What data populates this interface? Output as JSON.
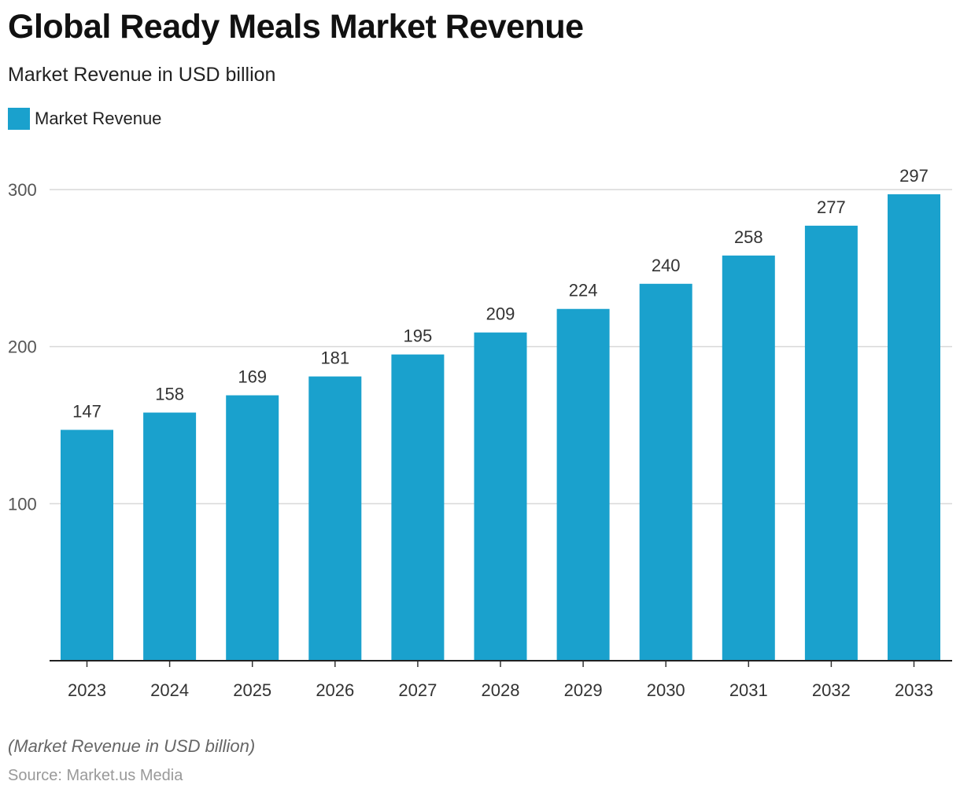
{
  "chart_data": {
    "type": "bar",
    "title": "Global Ready Meals Market Revenue",
    "subtitle": "Market Revenue in USD billion",
    "categories": [
      "2023",
      "2024",
      "2025",
      "2026",
      "2027",
      "2028",
      "2029",
      "2030",
      "2031",
      "2032",
      "2033"
    ],
    "series": [
      {
        "name": "Market Revenue",
        "values": [
          147,
          158,
          169,
          181,
          195,
          209,
          224,
          240,
          258,
          277,
          297
        ],
        "color": "#1aa1cd"
      }
    ],
    "xlabel": "",
    "ylabel": "",
    "ylim": [
      0,
      300
    ],
    "yticks": [
      100,
      200,
      300
    ],
    "grid": true,
    "legend": "top-left",
    "note": "(Market Revenue in USD billion)",
    "source": "Source: Market.us Media"
  }
}
